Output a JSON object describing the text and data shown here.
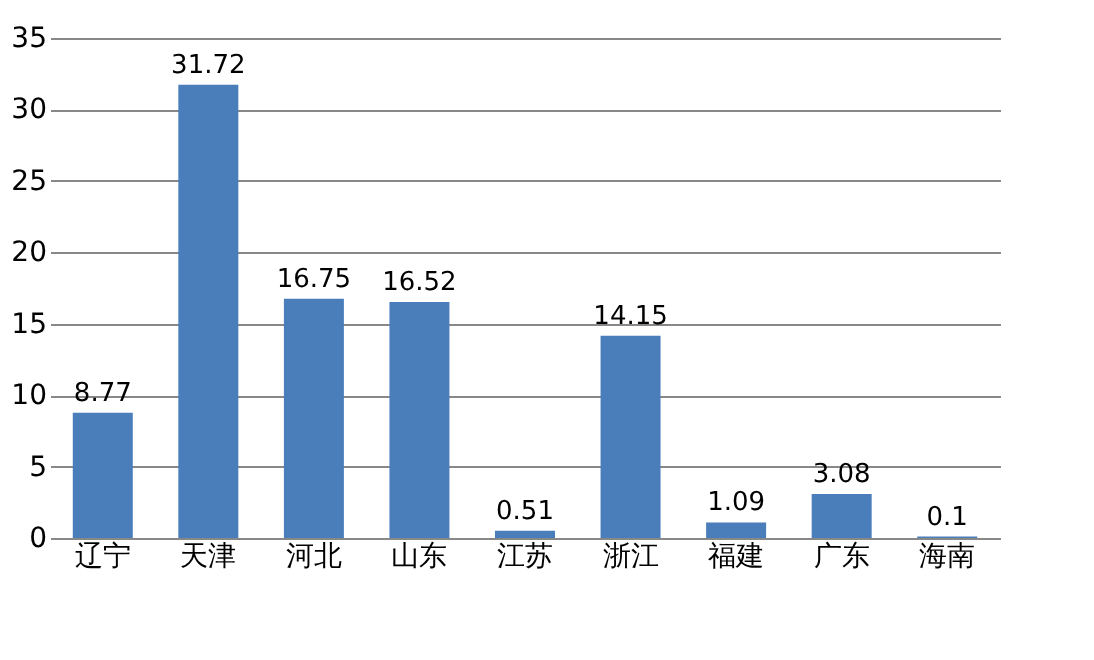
{
  "chart_data": {
    "type": "bar",
    "categories": [
      "辽宁",
      "天津",
      "河北",
      "山东",
      "江苏",
      "浙江",
      "福建",
      "广东",
      "海南"
    ],
    "values": [
      8.77,
      31.72,
      16.75,
      16.52,
      0.51,
      14.15,
      1.09,
      3.08,
      0.1
    ],
    "color": "#4a7ebb",
    "ylim": [
      0,
      35
    ],
    "yticks": [
      0,
      5,
      10,
      15,
      20,
      25,
      30,
      35
    ],
    "grid": "y",
    "data_labels": true
  }
}
